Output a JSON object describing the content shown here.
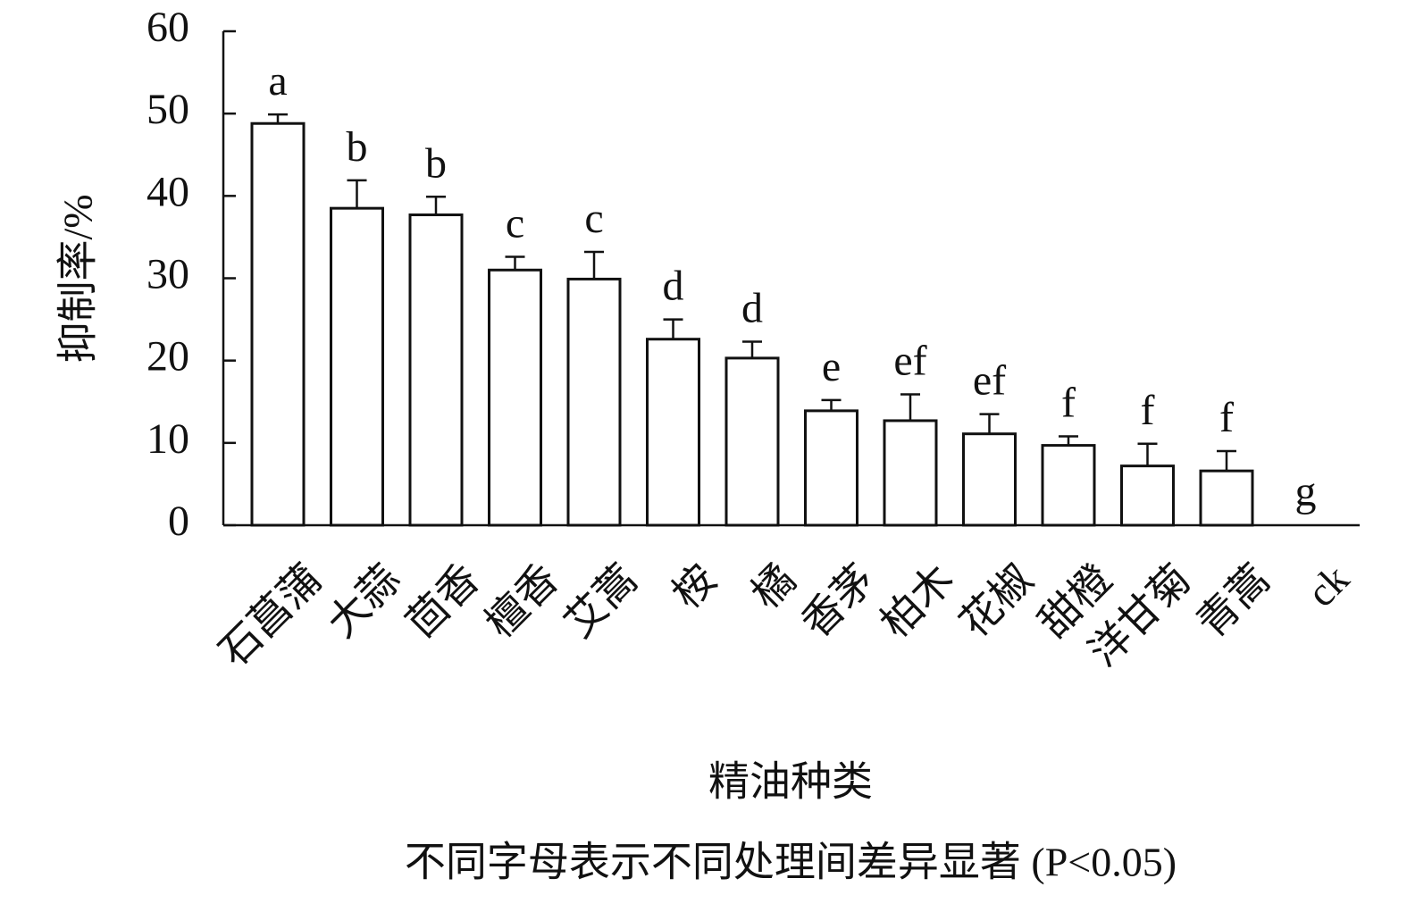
{
  "chart_data": {
    "type": "bar",
    "y_label": "抑制率/%",
    "x_label": "精油种类",
    "note": "不同字母表示不同处理间差异显著 (P<0.05)",
    "categories": [
      "石菖蒲",
      "大蒜",
      "茴香",
      "檀香",
      "艾蒿",
      "桉",
      "橘",
      "香茅",
      "柏木",
      "花椒",
      "甜橙",
      "洋甘菊",
      "青蒿",
      "ck"
    ],
    "values": [
      48.8,
      38.5,
      37.7,
      31.0,
      29.9,
      22.6,
      20.3,
      13.9,
      12.7,
      11.1,
      9.7,
      7.2,
      6.6,
      0
    ],
    "errors": [
      1.1,
      3.4,
      2.2,
      1.6,
      3.3,
      2.4,
      2.0,
      1.3,
      3.2,
      2.4,
      1.1,
      2.7,
      2.4,
      0
    ],
    "significance_letters": [
      "a",
      "b",
      "b",
      "c",
      "c",
      "d",
      "d",
      "e",
      "ef",
      "ef",
      "f",
      "f",
      "f",
      "g"
    ],
    "color": "#ffffff",
    "ylim": [
      0,
      60
    ],
    "yticks": [
      0,
      10,
      20,
      30,
      40,
      50,
      60
    ]
  }
}
